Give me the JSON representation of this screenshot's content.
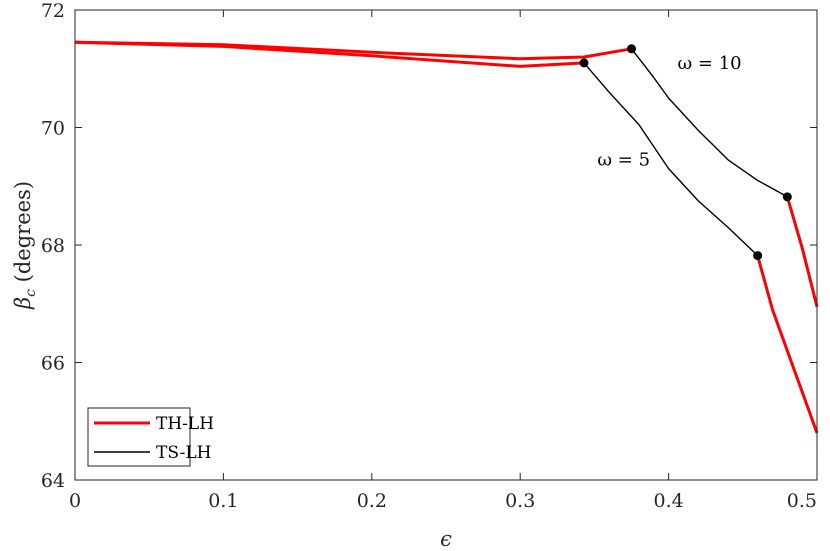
{
  "chart_data": {
    "type": "line",
    "xlabel": "ϵ",
    "ylabel_main": "β",
    "ylabel_sub": "c",
    "ylabel_rest": " (degrees)",
    "xlim": [
      0,
      0.5
    ],
    "ylim": [
      64,
      72
    ],
    "xticks": [
      0,
      0.1,
      0.2,
      0.3,
      0.4,
      0.5
    ],
    "xtick_labels": [
      "0",
      "0.1",
      "0.2",
      "0.3",
      "0.4",
      "0.5"
    ],
    "yticks": [
      64,
      66,
      68,
      70,
      72
    ],
    "ytick_labels": [
      "64",
      "66",
      "68",
      "70",
      "72"
    ],
    "grid": false,
    "legend_position": "bottom-left",
    "legend": [
      {
        "label": "TH-LH",
        "color": "#ff0000"
      },
      {
        "label": "TS-LH",
        "color": "#000000"
      }
    ],
    "annotations": [
      {
        "text": "ω = 10",
        "x": 0.406,
        "y": 71.0
      },
      {
        "text": "ω = 5",
        "x": 0.352,
        "y": 69.35
      }
    ],
    "series": [
      {
        "legend": "TH-LH",
        "color": "#ff0000",
        "width": 3,
        "x": [
          0,
          0.1,
          0.2,
          0.3,
          0.343
        ],
        "y": [
          71.45,
          71.38,
          71.22,
          71.04,
          71.1
        ]
      },
      {
        "legend": "TS-LH",
        "color": "#000000",
        "width": 1.4,
        "x": [
          0.343,
          0.36,
          0.38,
          0.4,
          0.42,
          0.44,
          0.46
        ],
        "y": [
          71.1,
          70.6,
          70.05,
          69.3,
          68.75,
          68.3,
          67.82
        ]
      },
      {
        "legend": "TH-LH",
        "color": "#ff0000",
        "width": 3,
        "x": [
          0.46,
          0.47,
          0.48,
          0.49,
          0.5
        ],
        "y": [
          67.82,
          66.9,
          66.2,
          65.5,
          64.8
        ]
      },
      {
        "legend": "TH-LH",
        "color": "#ff0000",
        "width": 3,
        "x": [
          0,
          0.1,
          0.2,
          0.3,
          0.343,
          0.375
        ],
        "y": [
          71.45,
          71.41,
          71.28,
          71.17,
          71.2,
          71.34
        ]
      },
      {
        "legend": "TS-LH",
        "color": "#000000",
        "width": 1.4,
        "x": [
          0.375,
          0.39,
          0.4,
          0.42,
          0.44,
          0.46,
          0.48
        ],
        "y": [
          71.34,
          70.85,
          70.5,
          69.95,
          69.45,
          69.1,
          68.82
        ]
      },
      {
        "legend": "TH-LH",
        "color": "#ff0000",
        "width": 3,
        "x": [
          0.48,
          0.49,
          0.5
        ],
        "y": [
          68.82,
          67.95,
          66.95
        ]
      }
    ],
    "markers": [
      {
        "x": 0.343,
        "y": 71.1
      },
      {
        "x": 0.375,
        "y": 71.34
      },
      {
        "x": 0.46,
        "y": 67.82
      },
      {
        "x": 0.48,
        "y": 68.82
      }
    ]
  }
}
